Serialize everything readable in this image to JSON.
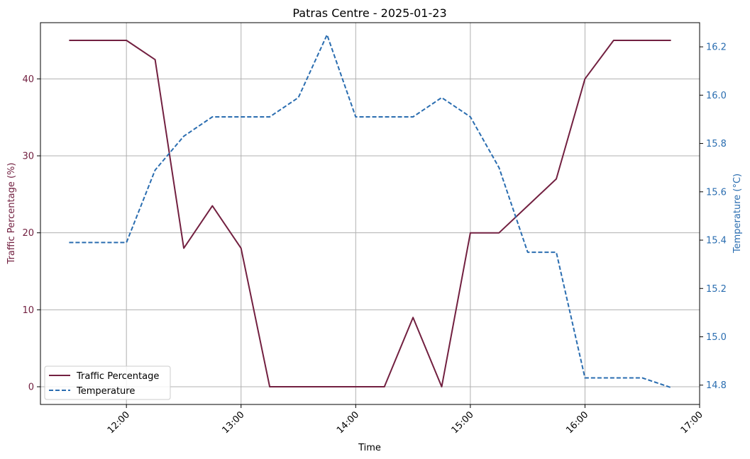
{
  "chart_data": {
    "type": "line",
    "title": "Patras Centre - 2025-01-23",
    "xlabel": "Time",
    "ylabel_left": "Traffic Percentage (%)",
    "ylabel_right": "Temperature (°C)",
    "x_ticks": [
      "12:00",
      "13:00",
      "14:00",
      "15:00",
      "16:00",
      "17:00"
    ],
    "x_range": [
      "11:15",
      "17:00"
    ],
    "ylim_left": [
      -2.3,
      47.3
    ],
    "yticks_left": [
      0,
      10,
      20,
      30,
      40
    ],
    "ylim_right": [
      14.72,
      16.3
    ],
    "yticks_right": [
      14.8,
      15.0,
      15.2,
      15.4,
      15.6,
      15.8,
      16.0,
      16.2
    ],
    "grid": true,
    "legend_position": "lower-left",
    "x": [
      "11:30",
      "11:45",
      "12:00",
      "12:15",
      "12:30",
      "12:45",
      "13:00",
      "13:15",
      "13:30",
      "13:45",
      "14:00",
      "14:15",
      "14:30",
      "14:45",
      "15:00",
      "15:15",
      "15:30",
      "15:45",
      "16:00",
      "16:15",
      "16:30",
      "16:45"
    ],
    "series": [
      {
        "name": "Traffic Percentage",
        "axis": "left",
        "style": "solid",
        "color": "#722040",
        "values": [
          45,
          45,
          45,
          42.5,
          18,
          23.5,
          18,
          0,
          0,
          0,
          0,
          0,
          9,
          0,
          20,
          20,
          23.5,
          27,
          40,
          45,
          45,
          45
        ]
      },
      {
        "name": "Temperature",
        "axis": "right",
        "style": "dashed",
        "color": "#2a6db0",
        "values": [
          15.39,
          15.39,
          15.39,
          15.69,
          15.83,
          15.91,
          15.91,
          15.91,
          15.99,
          16.25,
          15.91,
          15.91,
          15.91,
          15.99,
          15.91,
          15.7,
          15.35,
          15.35,
          14.83,
          14.83,
          14.83,
          14.79
        ]
      }
    ]
  },
  "colors": {
    "traffic_axis": "#722040",
    "temperature_axis": "#2a6db0",
    "grid": "#b0b0b0"
  }
}
